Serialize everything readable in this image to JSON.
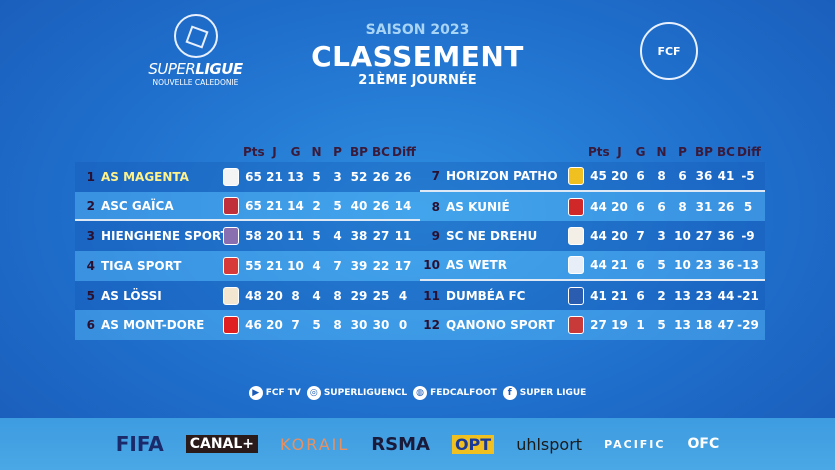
{
  "logos": {
    "superligue_a": "SUPER",
    "superligue_b": "LIGUE",
    "superligue_sub": "NOUVELLE CALEDONIE",
    "fcf": "FCF"
  },
  "header": {
    "season": "SAISON 2023",
    "title": "CLASSEMENT",
    "round": "21ÈME JOURNÉE"
  },
  "columns": [
    "Pts",
    "J",
    "G",
    "N",
    "P",
    "BP",
    "BC",
    "Diff"
  ],
  "standings": [
    {
      "rank": "1",
      "team": "AS MAGENTA",
      "logo_color": "#f4f4f4",
      "stats": [
        "65",
        "21",
        "13",
        "5",
        "3",
        "52",
        "26",
        "26"
      ]
    },
    {
      "rank": "2",
      "team": "ASC GAÏCA",
      "logo_color": "#c0303a",
      "stats": [
        "65",
        "21",
        "14",
        "2",
        "5",
        "40",
        "26",
        "14"
      ]
    },
    {
      "rank": "3",
      "team": "HIENGHENE SPORT",
      "logo_color": "#8a6fb0",
      "stats": [
        "58",
        "20",
        "11",
        "5",
        "4",
        "38",
        "27",
        "11"
      ]
    },
    {
      "rank": "4",
      "team": "TIGA SPORT",
      "logo_color": "#d83a3a",
      "stats": [
        "55",
        "21",
        "10",
        "4",
        "7",
        "39",
        "22",
        "17"
      ]
    },
    {
      "rank": "5",
      "team": "AS LÖSSI",
      "logo_color": "#f2e6d0",
      "stats": [
        "48",
        "20",
        "8",
        "4",
        "8",
        "29",
        "25",
        "4"
      ]
    },
    {
      "rank": "6",
      "team": "AS MONT-DORE",
      "logo_color": "#e02020",
      "stats": [
        "46",
        "20",
        "7",
        "5",
        "8",
        "30",
        "30",
        "0"
      ]
    },
    {
      "rank": "7",
      "team": "HORIZON PATHO",
      "logo_color": "#f0c020",
      "stats": [
        "45",
        "20",
        "6",
        "8",
        "6",
        "36",
        "41",
        "-5"
      ]
    },
    {
      "rank": "8",
      "team": "AS KUNIÉ",
      "logo_color": "#d02828",
      "stats": [
        "44",
        "20",
        "6",
        "6",
        "8",
        "31",
        "26",
        "5"
      ]
    },
    {
      "rank": "9",
      "team": "SC NE DREHU",
      "logo_color": "#f4efe6",
      "stats": [
        "44",
        "20",
        "7",
        "3",
        "10",
        "27",
        "36",
        "-9"
      ]
    },
    {
      "rank": "10",
      "team": "AS WETR",
      "logo_color": "#e8eef8",
      "stats": [
        "44",
        "21",
        "6",
        "5",
        "10",
        "23",
        "36",
        "-13"
      ]
    },
    {
      "rank": "11",
      "team": "DUMBÉA FC",
      "logo_color": "#2a5cb0",
      "stats": [
        "41",
        "21",
        "6",
        "2",
        "13",
        "23",
        "44",
        "-21"
      ]
    },
    {
      "rank": "12",
      "team": "QANONO SPORT",
      "logo_color": "#c83a3a",
      "stats": [
        "27",
        "19",
        "1",
        "5",
        "13",
        "18",
        "47",
        "-29"
      ]
    }
  ],
  "social": [
    {
      "icon": "youtube-icon",
      "label": "FCF TV"
    },
    {
      "icon": "instagram-icon",
      "label": "SUPERLIGUENCL"
    },
    {
      "icon": "globe-icon",
      "label": "FEDCALFOOT"
    },
    {
      "icon": "facebook-icon",
      "label": "SUPER LIGUE"
    }
  ],
  "sponsors": [
    "FIFA",
    "CANAL+",
    "KORAIL",
    "RSMA",
    "OPT",
    "uhlsport",
    "PACIFIC",
    "OFC"
  ],
  "colors": {
    "highlight_team": "#fff28a",
    "background": "#1f6fcc"
  }
}
